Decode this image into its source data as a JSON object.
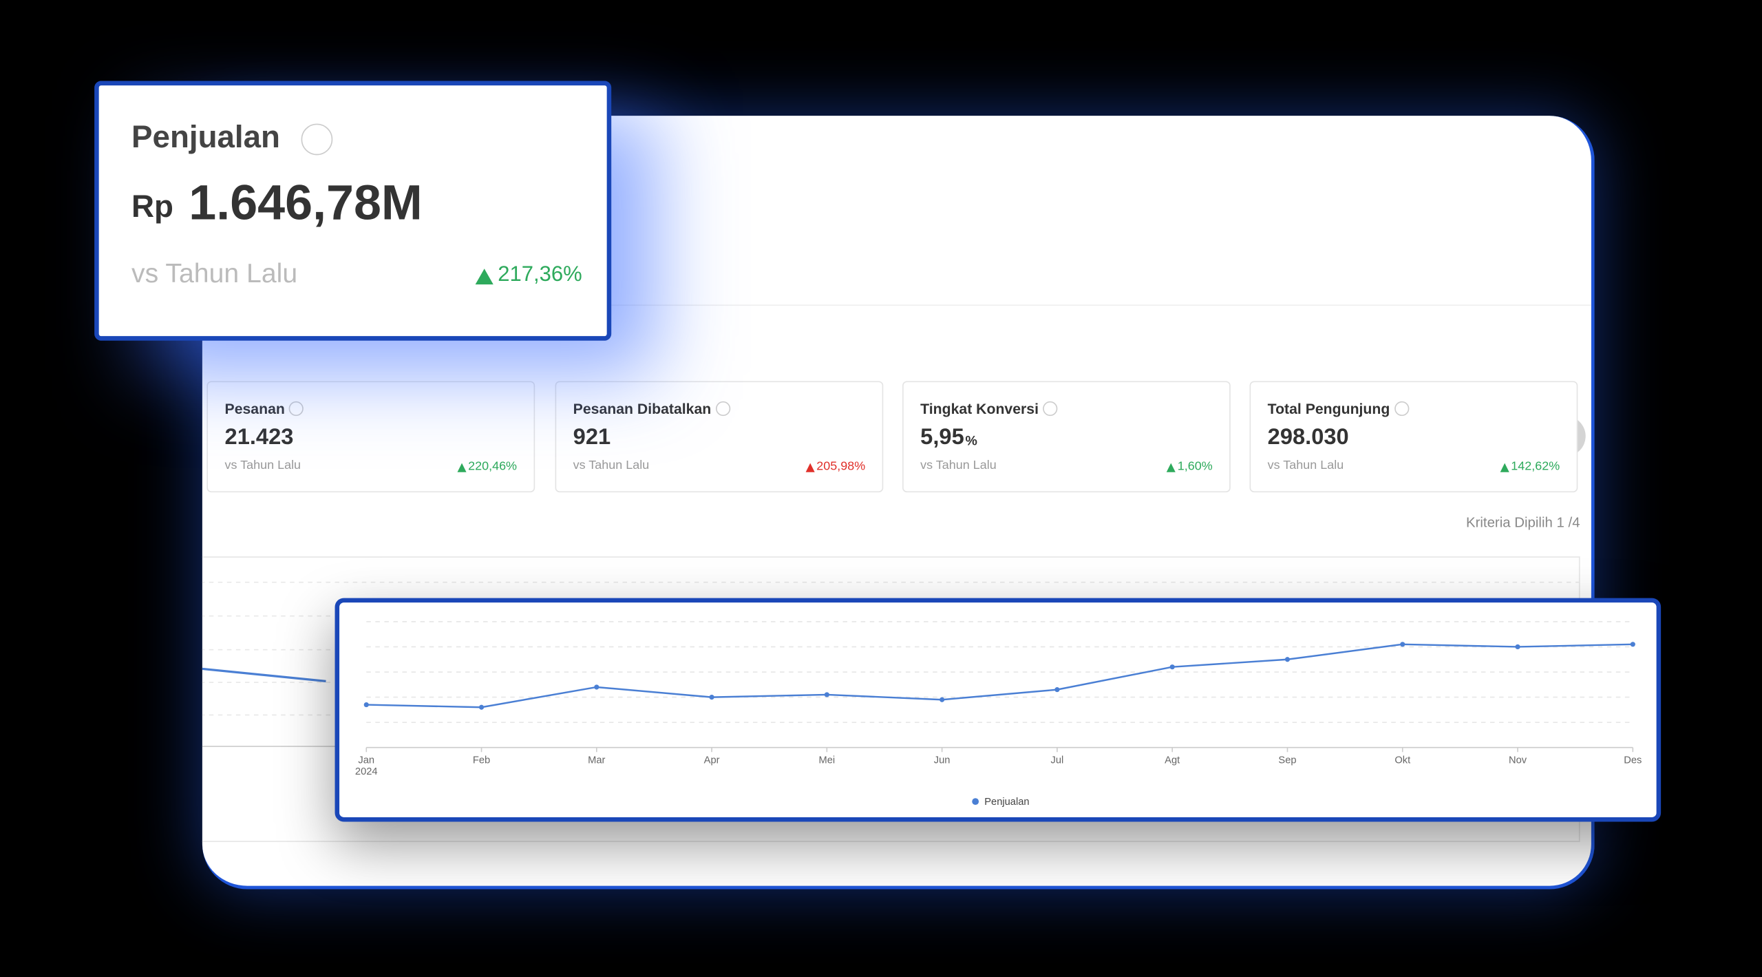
{
  "main_card": {
    "title": "Penjualan",
    "currency": "Rp",
    "value": "1.646,78M",
    "comparison": "vs Tahun Lalu",
    "change": "217,36%",
    "change_color": "#2eaa5c"
  },
  "metrics": [
    {
      "title": "Pesanan",
      "value": "21.423",
      "comparison": "vs Tahun Lalu",
      "change": "220,46%",
      "change_color": "#2eaa5c"
    },
    {
      "title": "Pesanan Dibatalkan",
      "value": "921",
      "comparison": "vs Tahun Lalu",
      "change": "205,98%",
      "change_color": "#e0302a"
    },
    {
      "title": "Tingkat Konversi",
      "value": "5,95",
      "unit": "%",
      "comparison": "vs Tahun Lalu",
      "change": "1,60%",
      "change_color": "#2eaa5c"
    },
    {
      "title": "Total Pengunjung",
      "value": "298.030",
      "comparison": "vs Tahun Lalu",
      "change": "142,62%",
      "change_color": "#2eaa5c"
    }
  ],
  "criteria": "Kriteria Dipilih 1 /4",
  "chart_data": {
    "type": "line",
    "categories": [
      "Jan",
      "Feb",
      "Mar",
      "Apr",
      "Mei",
      "Jun",
      "Jul",
      "Agt",
      "Sep",
      "Okt",
      "Nov",
      "Des"
    ],
    "first_category_year": "2024",
    "series": [
      {
        "name": "Penjualan",
        "color": "#4a7fd4",
        "values": [
          1.7,
          1.6,
          2.4,
          2.0,
          2.1,
          1.9,
          2.3,
          3.2,
          3.5,
          4.1,
          4.0,
          4.1
        ]
      }
    ],
    "ylim": [
      0,
      5
    ],
    "grid": true
  }
}
